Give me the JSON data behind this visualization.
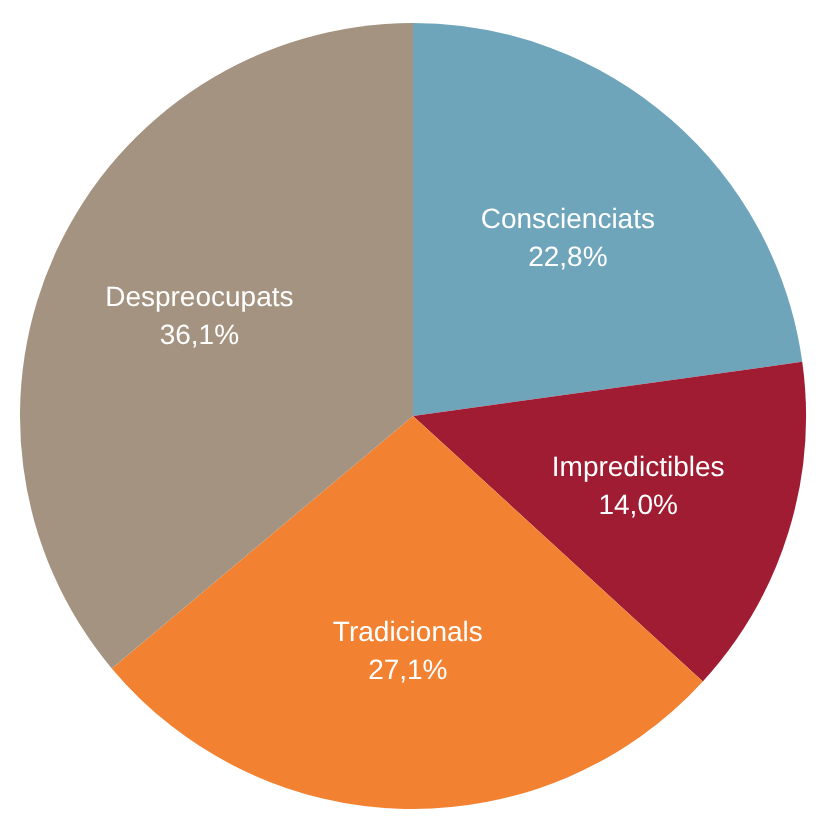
{
  "chart_data": {
    "type": "pie",
    "categories": [
      "Conscienciats",
      "Impredictibles",
      "Tradicionals",
      "Despreocupats"
    ],
    "values": [
      22.8,
      14.0,
      27.1,
      36.1
    ],
    "value_labels": [
      "22,8%",
      "14,0%",
      "27,1%",
      "36,1%"
    ],
    "colors": [
      "#6fa5bb",
      "#a01c33",
      "#f28232",
      "#a39380"
    ],
    "legend": false
  }
}
